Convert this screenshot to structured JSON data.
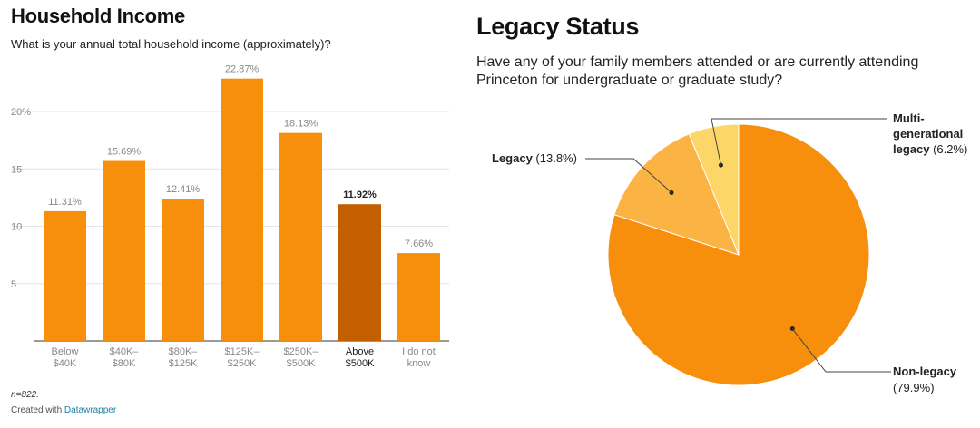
{
  "charts": {
    "income": {
      "title": "Household Income",
      "subtitle": "What is your annual total household income (approximately)?",
      "note": "n=822.",
      "credit_prefix": "Created with ",
      "credit_link": "Datawrapper"
    },
    "legacy": {
      "title": "Legacy Status",
      "subtitle": "Have any of your family members attended or are currently attending Princeton for undergraduate or graduate study?"
    }
  },
  "colors": {
    "bar": "#f78f0d",
    "bar_highlight": "#c45f00",
    "non_legacy": "#f78f0d",
    "legacy": "#fbb343",
    "multi": "#fcd767",
    "grid": "#e5e5e5",
    "axis_text": "#888888"
  },
  "chart_data": [
    {
      "type": "bar",
      "title": "Household Income",
      "subtitle": "What is your annual total household income (approximately)?",
      "categories": [
        [
          "Below",
          "$40K"
        ],
        [
          "$40K–",
          "$80K"
        ],
        [
          "$80K–",
          "$125K"
        ],
        [
          "$125K–",
          "$250K"
        ],
        [
          "$250K–",
          "$500K"
        ],
        [
          "Above",
          "$500K"
        ],
        [
          "I do not",
          "know"
        ]
      ],
      "values": [
        11.31,
        15.69,
        12.41,
        22.87,
        18.13,
        11.92,
        7.66
      ],
      "value_labels": [
        "11.31%",
        "15.69%",
        "12.41%",
        "22.87%",
        "18.13%",
        "11.92%",
        "7.66%"
      ],
      "highlight_index": 5,
      "yticks": [
        5,
        10,
        15,
        20
      ],
      "ytick_labels": [
        "5",
        "10",
        "15",
        "20%"
      ],
      "ylim": [
        0,
        24
      ],
      "grid": true
    },
    {
      "type": "pie",
      "title": "Legacy Status",
      "slices": [
        {
          "label": "Non-legacy",
          "value": 79.9,
          "display": "(79.9%)"
        },
        {
          "label": "Legacy",
          "value": 13.8,
          "display": "(13.8%)"
        },
        {
          "label": "Multi-generational legacy",
          "value": 6.2,
          "display": "(6.2%)"
        }
      ]
    }
  ]
}
